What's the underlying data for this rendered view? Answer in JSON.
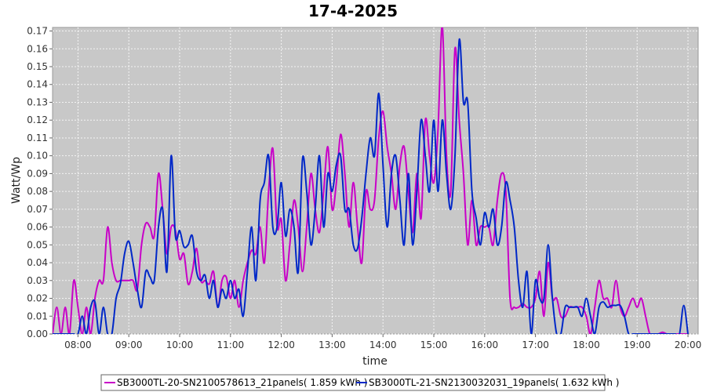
{
  "chart_data": {
    "type": "line",
    "title": "17-4-2025",
    "xlabel": "time",
    "ylabel": "Watt/Wp",
    "xlim": [
      "07:30",
      "20:12"
    ],
    "ylim": [
      0,
      0.172
    ],
    "x_ticks": [
      "08:00",
      "09:00",
      "10:00",
      "11:00",
      "12:00",
      "13:00",
      "14:00",
      "15:00",
      "16:00",
      "17:00",
      "18:00",
      "19:00",
      "20:00"
    ],
    "y_ticks": [
      "0.00",
      "0.01",
      "0.02",
      "0.03",
      "0.04",
      "0.05",
      "0.06",
      "0.07",
      "0.08",
      "0.09",
      "0.10",
      "0.11",
      "0.12",
      "0.13",
      "0.14",
      "0.15",
      "0.16",
      "0.17"
    ],
    "grid": true,
    "plot_background": "#c8c8c8",
    "legend_position": "bottom",
    "series": [
      {
        "name": "SB3000TL-20-SN2100578613_21panels( 1.859 kWh )",
        "color": "#c800c8",
        "x": [
          "07:30",
          "07:35",
          "07:40",
          "07:45",
          "07:50",
          "07:55",
          "08:00",
          "08:05",
          "08:10",
          "08:15",
          "08:20",
          "08:25",
          "08:30",
          "08:35",
          "08:40",
          "08:45",
          "08:50",
          "08:55",
          "09:00",
          "09:05",
          "09:10",
          "09:15",
          "09:20",
          "09:25",
          "09:30",
          "09:35",
          "09:40",
          "09:45",
          "09:50",
          "09:55",
          "10:00",
          "10:05",
          "10:10",
          "10:15",
          "10:20",
          "10:25",
          "10:30",
          "10:35",
          "10:40",
          "10:45",
          "10:50",
          "10:55",
          "11:00",
          "11:05",
          "11:10",
          "11:15",
          "11:20",
          "11:25",
          "11:30",
          "11:35",
          "11:40",
          "11:45",
          "11:50",
          "11:55",
          "12:00",
          "12:05",
          "12:10",
          "12:15",
          "12:20",
          "12:25",
          "12:30",
          "12:35",
          "12:40",
          "12:45",
          "12:50",
          "12:55",
          "13:00",
          "13:05",
          "13:10",
          "13:15",
          "13:20",
          "13:25",
          "13:30",
          "13:35",
          "13:40",
          "13:45",
          "13:50",
          "13:55",
          "14:00",
          "14:05",
          "14:10",
          "14:15",
          "14:20",
          "14:25",
          "14:30",
          "14:35",
          "14:40",
          "14:45",
          "14:50",
          "14:55",
          "15:00",
          "15:05",
          "15:10",
          "15:15",
          "15:20",
          "15:25",
          "15:30",
          "15:35",
          "15:40",
          "15:45",
          "15:50",
          "15:55",
          "16:00",
          "16:05",
          "16:10",
          "16:15",
          "16:20",
          "16:25",
          "16:30",
          "16:35",
          "16:40",
          "16:45",
          "16:50",
          "16:55",
          "17:00",
          "17:05",
          "17:10",
          "17:15",
          "17:20",
          "17:25",
          "17:30",
          "17:35",
          "17:40",
          "17:45",
          "17:50",
          "17:55",
          "18:00",
          "18:05",
          "18:10",
          "18:15",
          "18:20",
          "18:25",
          "18:30",
          "18:35",
          "18:40",
          "18:45",
          "18:50",
          "18:55",
          "19:00",
          "19:05",
          "19:10",
          "19:15",
          "19:20",
          "19:25",
          "19:30",
          "19:35",
          "19:40",
          "19:45",
          "19:50",
          "19:55",
          "20:00"
        ],
        "values": [
          0.0,
          0.015,
          0.0,
          0.015,
          0.0,
          0.03,
          0.015,
          0.0,
          0.015,
          0.0,
          0.02,
          0.03,
          0.03,
          0.06,
          0.04,
          0.03,
          0.03,
          0.03,
          0.03,
          0.03,
          0.025,
          0.05,
          0.062,
          0.06,
          0.055,
          0.09,
          0.07,
          0.045,
          0.06,
          0.058,
          0.042,
          0.045,
          0.028,
          0.035,
          0.048,
          0.03,
          0.03,
          0.028,
          0.035,
          0.015,
          0.03,
          0.032,
          0.02,
          0.03,
          0.015,
          0.03,
          0.04,
          0.047,
          0.045,
          0.06,
          0.04,
          0.08,
          0.104,
          0.06,
          0.064,
          0.03,
          0.05,
          0.075,
          0.06,
          0.035,
          0.06,
          0.09,
          0.07,
          0.057,
          0.08,
          0.105,
          0.07,
          0.085,
          0.112,
          0.09,
          0.06,
          0.085,
          0.06,
          0.04,
          0.08,
          0.07,
          0.075,
          0.11,
          0.125,
          0.105,
          0.09,
          0.07,
          0.095,
          0.105,
          0.08,
          0.057,
          0.09,
          0.065,
          0.12,
          0.1,
          0.085,
          0.115,
          0.173,
          0.1,
          0.08,
          0.16,
          0.12,
          0.09,
          0.05,
          0.075,
          0.05,
          0.06,
          0.06,
          0.06,
          0.05,
          0.075,
          0.09,
          0.08,
          0.02,
          0.015,
          0.015,
          0.017,
          0.015,
          0.015,
          0.02,
          0.035,
          0.01,
          0.04,
          0.02,
          0.02,
          0.01,
          0.01,
          0.015,
          0.015,
          0.015,
          0.015,
          0.01,
          0.0,
          0.015,
          0.03,
          0.02,
          0.02,
          0.015,
          0.03,
          0.015,
          0.01,
          0.015,
          0.02,
          0.015,
          0.02,
          0.01,
          0.0,
          0.0,
          0.0,
          0.001,
          0.0,
          0.0,
          0.0,
          0.0,
          0.0,
          0.0
        ]
      },
      {
        "name": "SB3000TL-21-SN2130032031_19panels( 1.632 kWh )",
        "color": "#0028c8",
        "x": [
          "07:30",
          "07:35",
          "07:40",
          "07:45",
          "07:50",
          "07:55",
          "08:00",
          "08:05",
          "08:10",
          "08:15",
          "08:20",
          "08:25",
          "08:30",
          "08:35",
          "08:40",
          "08:45",
          "08:50",
          "08:55",
          "09:00",
          "09:05",
          "09:10",
          "09:15",
          "09:20",
          "09:25",
          "09:30",
          "09:35",
          "09:40",
          "09:45",
          "09:50",
          "09:55",
          "10:00",
          "10:05",
          "10:10",
          "10:15",
          "10:20",
          "10:25",
          "10:30",
          "10:35",
          "10:40",
          "10:45",
          "10:50",
          "10:55",
          "11:00",
          "11:05",
          "11:10",
          "11:15",
          "11:20",
          "11:25",
          "11:30",
          "11:35",
          "11:40",
          "11:45",
          "11:50",
          "11:55",
          "12:00",
          "12:05",
          "12:10",
          "12:15",
          "12:20",
          "12:25",
          "12:30",
          "12:35",
          "12:40",
          "12:45",
          "12:50",
          "12:55",
          "13:00",
          "13:05",
          "13:10",
          "13:15",
          "13:20",
          "13:25",
          "13:30",
          "13:35",
          "13:40",
          "13:45",
          "13:50",
          "13:55",
          "14:00",
          "14:05",
          "14:10",
          "14:15",
          "14:20",
          "14:25",
          "14:30",
          "14:35",
          "14:40",
          "14:45",
          "14:50",
          "14:55",
          "15:00",
          "15:05",
          "15:10",
          "15:15",
          "15:20",
          "15:25",
          "15:30",
          "15:35",
          "15:40",
          "15:45",
          "15:50",
          "15:55",
          "16:00",
          "16:05",
          "16:10",
          "16:15",
          "16:20",
          "16:25",
          "16:30",
          "16:35",
          "16:40",
          "16:45",
          "16:50",
          "16:55",
          "17:00",
          "17:05",
          "17:10",
          "17:15",
          "17:20",
          "17:25",
          "17:30",
          "17:35",
          "17:40",
          "17:45",
          "17:50",
          "17:55",
          "18:00",
          "18:05",
          "18:10",
          "18:15",
          "18:20",
          "18:25",
          "18:30",
          "18:35",
          "18:40",
          "18:45",
          "18:50",
          "18:55",
          "19:00",
          "19:05",
          "19:10",
          "19:15",
          "19:20",
          "19:25",
          "19:30",
          "19:35",
          "19:40",
          "19:45",
          "19:50",
          "19:55",
          "20:00"
        ],
        "values": [
          0.0,
          0.0,
          0.0,
          0.0,
          0.0,
          0.0,
          0.0,
          0.01,
          0.0,
          0.015,
          0.018,
          0.0,
          0.015,
          0.0,
          0.0,
          0.02,
          0.028,
          0.045,
          0.052,
          0.04,
          0.025,
          0.015,
          0.035,
          0.032,
          0.03,
          0.06,
          0.07,
          0.035,
          0.1,
          0.055,
          0.058,
          0.049,
          0.05,
          0.055,
          0.035,
          0.03,
          0.033,
          0.02,
          0.03,
          0.015,
          0.025,
          0.02,
          0.03,
          0.02,
          0.025,
          0.01,
          0.035,
          0.06,
          0.03,
          0.075,
          0.085,
          0.1,
          0.06,
          0.06,
          0.085,
          0.055,
          0.07,
          0.06,
          0.035,
          0.098,
          0.08,
          0.05,
          0.07,
          0.1,
          0.06,
          0.09,
          0.08,
          0.095,
          0.1,
          0.07,
          0.07,
          0.05,
          0.048,
          0.065,
          0.09,
          0.11,
          0.1,
          0.135,
          0.095,
          0.06,
          0.09,
          0.1,
          0.075,
          0.05,
          0.09,
          0.05,
          0.08,
          0.12,
          0.1,
          0.08,
          0.12,
          0.08,
          0.12,
          0.09,
          0.07,
          0.1,
          0.165,
          0.13,
          0.13,
          0.08,
          0.065,
          0.05,
          0.068,
          0.06,
          0.07,
          0.05,
          0.06,
          0.085,
          0.075,
          0.06,
          0.03,
          0.015,
          0.035,
          0.0,
          0.03,
          0.02,
          0.02,
          0.05,
          0.02,
          0.0,
          0.0,
          0.015,
          0.015,
          0.015,
          0.015,
          0.01,
          0.02,
          0.01,
          0.0,
          0.015,
          0.018,
          0.015,
          0.016,
          0.016,
          0.016,
          0.01,
          0.0,
          0.0,
          0.0,
          0.0,
          0.0,
          0.0,
          0.0,
          0.0,
          0.0,
          0.0,
          0.0,
          0.0,
          0.0,
          0.016,
          0.0
        ]
      }
    ]
  }
}
